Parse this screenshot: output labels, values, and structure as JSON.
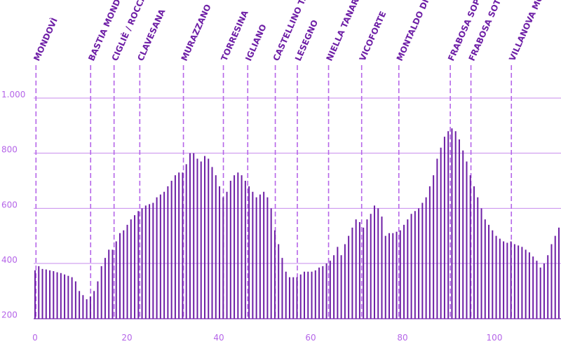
{
  "chart_data": {
    "type": "bar",
    "title": "",
    "xlabel": "",
    "ylabel": "",
    "xlim": [
      0,
      114
    ],
    "ylim": [
      200,
      1100
    ],
    "grid": true,
    "x_ticks": [
      0,
      20,
      40,
      60,
      80,
      100
    ],
    "x_tick_labels": [
      "0",
      "20",
      "40",
      "60",
      "80",
      "100"
    ],
    "y_ticks": [
      200,
      400,
      600,
      800,
      1000
    ],
    "y_tick_labels": [
      "200",
      "400",
      "600",
      "800",
      "1.000"
    ],
    "colors": {
      "bars": "#6e1fa6",
      "grid": "#b565e8",
      "markers": "#b565e8",
      "ticks": "#b565e8",
      "places": "#6e1fa6"
    },
    "series": [
      {
        "values": [
          375,
          390,
          380,
          378,
          375,
          372,
          368,
          365,
          360,
          355,
          350,
          335,
          300,
          285,
          270,
          280,
          300,
          335,
          390,
          420,
          450,
          450,
          480,
          510,
          520,
          540,
          560,
          575,
          590,
          600,
          610,
          615,
          620,
          640,
          650,
          660,
          680,
          700,
          720,
          730,
          730,
          760,
          800,
          800,
          780,
          770,
          790,
          780,
          750,
          720,
          680,
          640,
          660,
          700,
          720,
          730,
          720,
          700,
          680,
          660,
          640,
          650,
          660,
          640,
          600,
          520,
          470,
          420,
          370,
          350,
          350,
          350,
          360,
          370,
          370,
          370,
          375,
          385,
          390,
          400,
          410,
          430,
          460,
          430,
          470,
          500,
          530,
          560,
          550,
          530,
          560,
          580,
          610,
          600,
          570,
          500,
          510,
          510,
          515,
          520,
          540,
          560,
          580,
          590,
          600,
          620,
          640,
          680,
          720,
          780,
          820,
          860,
          880,
          890,
          880,
          850,
          810,
          770,
          720,
          680,
          640,
          600,
          560,
          540,
          520,
          500,
          490,
          480,
          475,
          480,
          470,
          465,
          460,
          450,
          440,
          425,
          410,
          385,
          400,
          430,
          470,
          500,
          530
        ]
      }
    ],
    "places": [
      {
        "label": "MONDOVÌ",
        "km": 0.2
      },
      {
        "label": "BASTIA MONDOVÌ",
        "km": 12.1
      },
      {
        "label": "CIGLIÈ / ROCCA CIGLIÈ",
        "km": 17.2
      },
      {
        "label": "CLAVESANA",
        "km": 22.8
      },
      {
        "label": "MURAZZANO",
        "km": 32.3
      },
      {
        "label": "TORRESINA",
        "km": 41.0
      },
      {
        "label": "IGLIANO",
        "km": 46.3
      },
      {
        "label": "CASTELLINO TANARO",
        "km": 52.3
      },
      {
        "label": "LESEGNO",
        "km": 57.1
      },
      {
        "label": "NIELLA TANARO",
        "km": 63.9
      },
      {
        "label": "VICOFORTE",
        "km": 71.1
      },
      {
        "label": "MONTALDO DI MONDOVÌ",
        "km": 79.2
      },
      {
        "label": "FRABOSA SOPRANA",
        "km": 90.4
      },
      {
        "label": "FRABOSA SOTTANA",
        "km": 94.9
      },
      {
        "label": "VILLANOVA MONDOVÌ",
        "km": 103.7
      }
    ]
  }
}
